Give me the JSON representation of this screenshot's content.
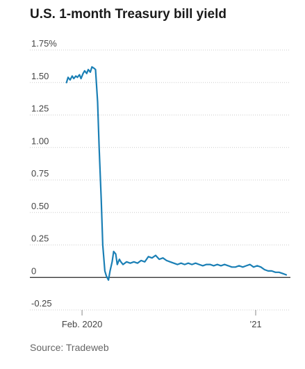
{
  "chart_data": {
    "type": "line",
    "title": "U.S. 1-month Treasury bill yield",
    "xlabel": "",
    "ylabel": "",
    "source": "Source: Tradeweb",
    "line_color": "#1a7fb5",
    "grid": true,
    "ylim": [
      -0.25,
      1.75
    ],
    "xlim": [
      "2019-12-24",
      "2021-03-05"
    ],
    "y_ticks": [
      {
        "value": 1.75,
        "label": "1.75%"
      },
      {
        "value": 1.5,
        "label": "1.50"
      },
      {
        "value": 1.25,
        "label": "1.25"
      },
      {
        "value": 1.0,
        "label": "1.00"
      },
      {
        "value": 0.75,
        "label": "0.75"
      },
      {
        "value": 0.5,
        "label": "0.50"
      },
      {
        "value": 0.25,
        "label": "0.25"
      },
      {
        "value": 0,
        "label": "0"
      },
      {
        "value": -0.25,
        "label": "-0.25"
      }
    ],
    "x_ticks": [
      {
        "date": "2020-02-01",
        "label": "Feb. 2020"
      },
      {
        "date": "2021-01-01",
        "label": "’21"
      }
    ],
    "series": [
      {
        "name": "",
        "x": [
          "2020-01-02",
          "2020-01-05",
          "2020-01-09",
          "2020-01-13",
          "2020-01-16",
          "2020-01-20",
          "2020-01-23",
          "2020-01-27",
          "2020-01-30",
          "2020-02-03",
          "2020-02-06",
          "2020-02-10",
          "2020-02-13",
          "2020-02-17",
          "2020-02-20",
          "2020-02-24",
          "2020-02-27",
          "2020-03-02",
          "2020-03-05",
          "2020-03-09",
          "2020-03-12",
          "2020-03-16",
          "2020-03-19",
          "2020-03-23",
          "2020-03-26",
          "2020-03-30",
          "2020-04-02",
          "2020-04-06",
          "2020-04-09",
          "2020-04-13",
          "2020-04-16",
          "2020-04-20",
          "2020-04-27",
          "2020-05-04",
          "2020-05-11",
          "2020-05-18",
          "2020-05-25",
          "2020-06-01",
          "2020-06-08",
          "2020-06-15",
          "2020-06-22",
          "2020-06-29",
          "2020-07-06",
          "2020-07-13",
          "2020-07-20",
          "2020-07-27",
          "2020-08-03",
          "2020-08-10",
          "2020-08-17",
          "2020-08-24",
          "2020-08-31",
          "2020-09-07",
          "2020-09-14",
          "2020-09-21",
          "2020-09-28",
          "2020-10-05",
          "2020-10-12",
          "2020-10-19",
          "2020-10-26",
          "2020-11-02",
          "2020-11-09",
          "2020-11-16",
          "2020-11-23",
          "2020-11-30",
          "2020-12-07",
          "2020-12-14",
          "2020-12-21",
          "2020-12-28",
          "2021-01-04",
          "2021-01-11",
          "2021-01-18",
          "2021-01-25",
          "2021-02-01",
          "2021-02-08",
          "2021-02-15",
          "2021-02-22",
          "2021-03-01"
        ],
        "y": [
          1.5,
          1.54,
          1.52,
          1.55,
          1.53,
          1.55,
          1.54,
          1.56,
          1.53,
          1.57,
          1.59,
          1.57,
          1.6,
          1.58,
          1.62,
          1.61,
          1.6,
          1.35,
          1.0,
          0.6,
          0.25,
          0.05,
          0.01,
          -0.02,
          0.05,
          0.12,
          0.2,
          0.18,
          0.1,
          0.14,
          0.12,
          0.1,
          0.12,
          0.11,
          0.12,
          0.11,
          0.13,
          0.12,
          0.16,
          0.15,
          0.17,
          0.14,
          0.15,
          0.13,
          0.12,
          0.11,
          0.1,
          0.11,
          0.1,
          0.11,
          0.1,
          0.11,
          0.1,
          0.09,
          0.1,
          0.1,
          0.09,
          0.1,
          0.09,
          0.1,
          0.09,
          0.08,
          0.08,
          0.09,
          0.08,
          0.09,
          0.1,
          0.08,
          0.09,
          0.08,
          0.06,
          0.05,
          0.05,
          0.04,
          0.04,
          0.03,
          0.02
        ]
      }
    ]
  }
}
